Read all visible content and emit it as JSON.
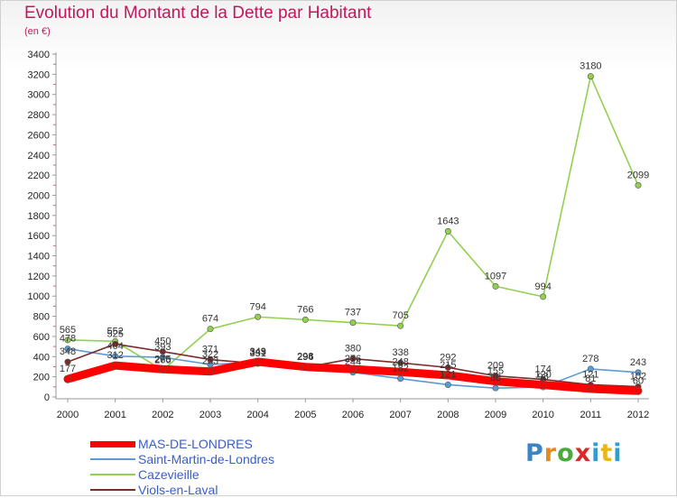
{
  "chart_data": {
    "type": "line",
    "title": "Evolution du Montant de la Dette par Habitant",
    "subtitle": "(en €)",
    "x": [
      "2000",
      "2001",
      "2002",
      "2003",
      "2004",
      "2005",
      "2006",
      "2007",
      "2008",
      "2009",
      "2010",
      "2011",
      "2012"
    ],
    "ylim": [
      0,
      3400
    ],
    "yticks": [
      0,
      200,
      400,
      600,
      800,
      1000,
      1200,
      1400,
      1600,
      1800,
      2000,
      2200,
      2400,
      2600,
      2800,
      3000,
      3200,
      3400
    ],
    "grid": false,
    "legend_position": "bottom-left",
    "series": [
      {
        "name": "MAS-DE-LONDRES",
        "color": "#ff0000",
        "values": [
          177,
          312,
          275,
          253,
          349,
          298,
          276,
          248,
          215,
          155,
          120,
          81,
          60
        ]
      },
      {
        "name": "Saint-Martin-de-Londres",
        "color": "#5b9bd5",
        "values": [
          478,
          404,
          393,
          322,
          343,
          296,
          244,
          182,
          121,
          88,
          98,
          278,
          243
        ]
      },
      {
        "name": "Cazevieille",
        "color": "#92d050",
        "values": [
          565,
          552,
          266,
          674,
          794,
          766,
          737,
          705,
          1643,
          1097,
          994,
          3180,
          2099
        ]
      },
      {
        "name": "Viols-en-Laval",
        "color": "#7b2c2c",
        "values": [
          348,
          525,
          450,
          371,
          331,
          294,
          380,
          338,
          292,
          209,
          174,
          121,
          102
        ]
      }
    ]
  },
  "logo": {
    "p": "P",
    "r": "r",
    "o": "o",
    "x": "x",
    "i": "i",
    "t": "t",
    "i2": "i"
  }
}
